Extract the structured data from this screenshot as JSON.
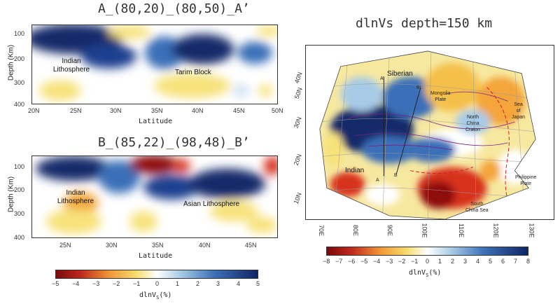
{
  "panel_a": {
    "title": "A_(80,20)_(80,50)_A’",
    "y_label": "Depth (Km)",
    "y_ticks": [
      "100",
      "200",
      "300",
      "400"
    ],
    "x_ticks": [
      "20N",
      "25N",
      "30N",
      "35N",
      "40N",
      "45N",
      "50N"
    ],
    "x_label": "Latitude",
    "annotations": {
      "indian_1": "Indian",
      "indian_2": "Lithosphere",
      "tarim": "Tarim Block"
    }
  },
  "panel_b": {
    "title": "B_(85,22)_(98,48)_B’",
    "y_label": "Depth (Km)",
    "y_ticks": [
      "100",
      "200",
      "300",
      "400"
    ],
    "x_ticks": [
      "25N",
      "30N",
      "35N",
      "40N",
      "45N"
    ],
    "x_label": "Latitude",
    "annotations": {
      "indian_1": "Indian",
      "indian_2": "Lithosphere",
      "asian": "Asian Lithosphere"
    }
  },
  "colorbar_left": {
    "ticks": [
      "−5",
      "−4",
      "−3",
      "−2",
      "−1",
      "0",
      "1",
      "2",
      "3",
      "4",
      "5"
    ],
    "label_prefix": "dlnV",
    "label_sub": "S",
    "label_suffix": "(%)"
  },
  "map": {
    "title": "dlnVs depth=150 km",
    "lat_ticks": [
      "40N",
      "30N",
      "20N",
      "10N"
    ],
    "lon_ticks": [
      "70E",
      "80E",
      "90E",
      "100E",
      "110E",
      "120E",
      "130E"
    ],
    "top_ticks": [
      "50N"
    ],
    "labels": {
      "siberian": "Siberian",
      "mongolia_1": "Mongolia",
      "mongolia_2": "Plate",
      "ncc_1": "North",
      "ncc_2": "China",
      "ncc_3": "Craton",
      "sea_1": "Sea",
      "sea_2": "of",
      "sea_3": "Japan",
      "indian": "Indian",
      "philippine_1": "Philippine",
      "philippine_2": "Plate",
      "scs_1": "South",
      "scs_2": "China Sea",
      "a": "A",
      "a_prime": "A’",
      "b": "B",
      "b_prime": "B’"
    }
  },
  "colorbar_right": {
    "ticks": [
      "−8",
      "−7",
      "−6",
      "−5",
      "−4",
      "−3",
      "−2",
      "−1",
      "0",
      "1",
      "2",
      "3",
      "4",
      "5",
      "6",
      "7",
      "8"
    ],
    "label_prefix": "dlnV",
    "label_sub": "S",
    "label_suffix": "(%)"
  },
  "colors": {
    "dark_red": "#8e0d10",
    "red": "#d7301f",
    "orange": "#f4a53a",
    "yellow": "#f7e27a",
    "white": "#ffffff",
    "light_blue": "#b5d3ea",
    "blue": "#3a6fb8",
    "navy": "#14296b"
  }
}
